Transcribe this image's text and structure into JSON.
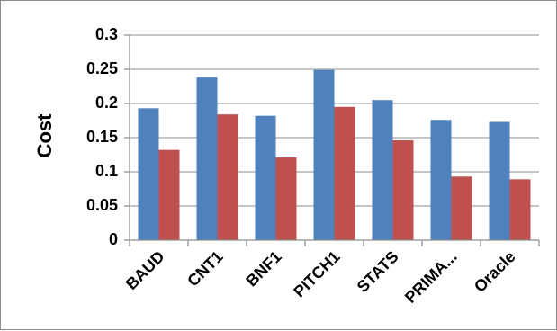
{
  "chart_data": {
    "type": "bar",
    "categories": [
      "BAUD",
      "CNT1",
      "BNF1",
      "PITCH1",
      "STATS",
      "PRIMA...",
      "Oracle"
    ],
    "series": [
      {
        "color": "#4f81bd",
        "values": [
          0.193,
          0.238,
          0.182,
          0.249,
          0.205,
          0.176,
          0.173
        ]
      },
      {
        "color": "#c0504d",
        "values": [
          0.132,
          0.184,
          0.121,
          0.195,
          0.146,
          0.093,
          0.089
        ]
      }
    ],
    "title": "",
    "xlabel": "",
    "ylabel": "Cost",
    "ylim": [
      0,
      0.3
    ],
    "yticks": [
      "0",
      "0.05",
      "0.1",
      "0.15",
      "0.2",
      "0.25",
      "0.3"
    ],
    "grid": true,
    "legend": "none"
  }
}
